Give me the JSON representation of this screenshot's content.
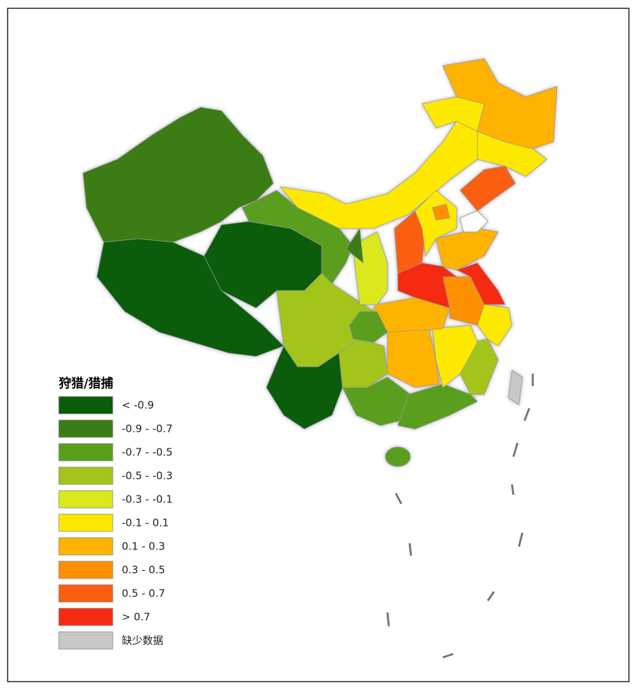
{
  "legend": {
    "title": "狩猎/猎捕",
    "items": [
      {
        "label": "< -0.9",
        "color": "#0b5d0b"
      },
      {
        "label": "-0.9 - -0.7",
        "color": "#3b7d14"
      },
      {
        "label": "-0.7 - -0.5",
        "color": "#5a9e1e"
      },
      {
        "label": "-0.5 - -0.3",
        "color": "#a3c41a"
      },
      {
        "label": "-0.3 - -0.1",
        "color": "#dbe81e"
      },
      {
        "label": "-0.1 - 0.1",
        "color": "#fde800"
      },
      {
        "label": "0.1 - 0.3",
        "color": "#fdb300"
      },
      {
        "label": "0.3 - 0.5",
        "color": "#fd9000"
      },
      {
        "label": "0.5 - 0.7",
        "color": "#fa5e10"
      },
      {
        "label": "> 0.7",
        "color": "#f52a10"
      },
      {
        "label": "缺少数据",
        "color": "#c8c8c8"
      }
    ]
  }
}
